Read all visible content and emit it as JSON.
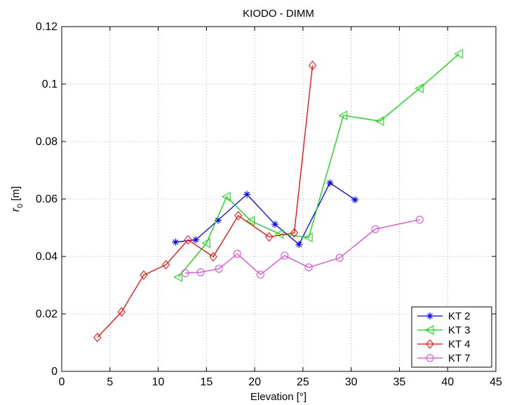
{
  "chart_data": {
    "type": "line",
    "title": "KIODO - DIMM",
    "xlabel": "Elevation  [°]",
    "ylabel_main": "r",
    "ylabel_sub": "0",
    "ylabel_unit": "  [m]",
    "xlim": [
      0,
      45
    ],
    "ylim": [
      0,
      0.12
    ],
    "xticks": [
      0,
      5,
      10,
      15,
      20,
      25,
      30,
      35,
      40,
      45
    ],
    "yticks": [
      0,
      0.02,
      0.04,
      0.06,
      0.08,
      0.1,
      0.12
    ],
    "xtick_labels": [
      "0",
      "5",
      "10",
      "15",
      "20",
      "25",
      "30",
      "35",
      "40",
      "45"
    ],
    "ytick_labels": [
      "0",
      "0.02",
      "0.04",
      "0.06",
      "0.08",
      "0.1",
      "0.12"
    ],
    "grid": true,
    "legend_position": "bottom-right",
    "series": [
      {
        "name": "KT 2",
        "color": "#0000ff",
        "marker": "asterisk",
        "x": [
          11.8,
          13.9,
          16.2,
          19.2,
          22.1,
          24.6,
          27.8,
          30.4
        ],
        "y": [
          0.045,
          0.0458,
          0.0526,
          0.0616,
          0.0512,
          0.0442,
          0.0656,
          0.0597
        ]
      },
      {
        "name": "KT 3",
        "color": "#00dd00",
        "marker": "triangle-left",
        "x": [
          12.1,
          15.0,
          17.1,
          19.6,
          22.6,
          25.6,
          29.2,
          33.0,
          37.1,
          41.2
        ],
        "y": [
          0.0328,
          0.0446,
          0.0608,
          0.0524,
          0.0478,
          0.0466,
          0.0891,
          0.0871,
          0.0985,
          0.1105
        ]
      },
      {
        "name": "KT 4",
        "color": "#ff0000",
        "marker": "diamond",
        "x": [
          3.7,
          6.2,
          8.5,
          10.8,
          13.1,
          15.7,
          18.3,
          21.5,
          24.1,
          26.0
        ],
        "y": [
          0.0118,
          0.0207,
          0.0335,
          0.0371,
          0.0458,
          0.0399,
          0.0542,
          0.0468,
          0.0482,
          0.1065
        ]
      },
      {
        "name": "KT 7",
        "color": "#dd44dd",
        "marker": "circle",
        "x": [
          12.8,
          14.4,
          16.3,
          18.2,
          20.6,
          23.1,
          25.6,
          28.8,
          32.5,
          37.1
        ],
        "y": [
          0.0342,
          0.0345,
          0.0357,
          0.0409,
          0.0337,
          0.0403,
          0.0362,
          0.0395,
          0.0495,
          0.0528
        ]
      }
    ]
  }
}
